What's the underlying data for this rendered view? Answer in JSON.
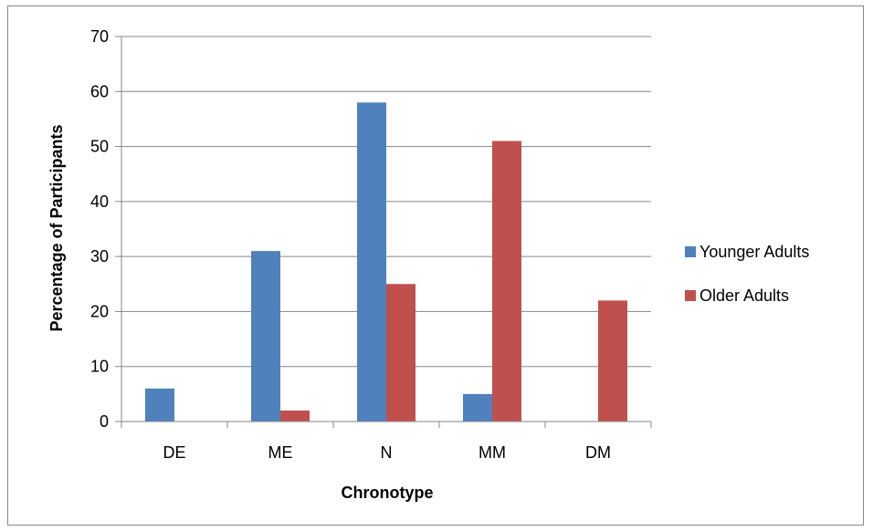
{
  "chart_data": {
    "type": "bar",
    "title": "",
    "xlabel": "Chronotype",
    "ylabel": "Percentage of Participants",
    "categories": [
      "DE",
      "ME",
      "N",
      "MM",
      "DM"
    ],
    "series": [
      {
        "name": "Younger Adults",
        "color": "#4F81BD",
        "values": [
          6,
          31,
          58,
          5,
          0
        ]
      },
      {
        "name": "Older Adults",
        "color": "#C0504D",
        "values": [
          0,
          2,
          25,
          51,
          22
        ]
      }
    ],
    "ylim": [
      0,
      70
    ],
    "yticks": [
      0,
      10,
      20,
      30,
      40,
      50,
      60,
      70
    ],
    "grid": true,
    "legend_position": "right"
  }
}
